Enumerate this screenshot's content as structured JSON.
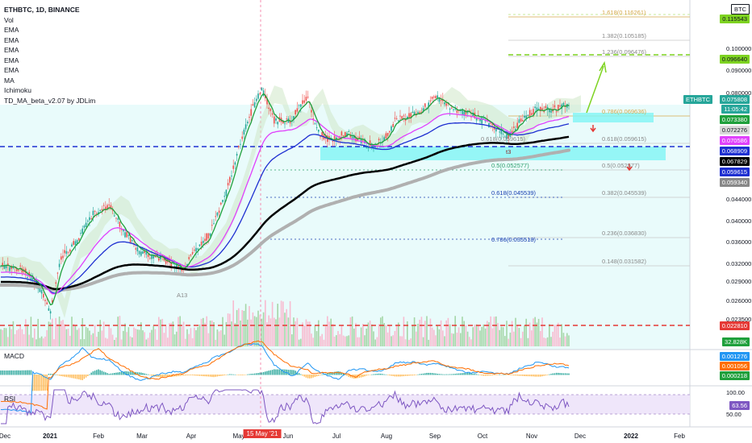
{
  "header": {
    "symbol_line": "ETHBTC, 1D, BINANCE",
    "indicators": [
      "Vol",
      "EMA",
      "EMA",
      "EMA",
      "EMA",
      "EMA",
      "MA",
      "Ichimoku",
      "TD_MA_beta_v2.07 by JDLim"
    ]
  },
  "price_scale": {
    "currency": "BTC",
    "ticks": [
      "0.100000",
      "0.090000",
      "0.080000",
      "0.044000",
      "0.040000",
      "0.036000",
      "0.032000",
      "0.029000",
      "0.026000",
      "0.023500"
    ]
  },
  "tags": {
    "symbol": "ETHBTC",
    "price": "0.075808",
    "countdown": "11:05:42",
    "t_top": "0.115543",
    "t_target": "0.096640",
    "ema1": "0.073380",
    "ema2": "0.072276",
    "ema3": "0.070586",
    "ema4": "0.068909",
    "ema5": "0.067829",
    "ma": "0.059615",
    "ichimoku": "0.059340",
    "support": "0.022810",
    "volume": "32.828K",
    "macd1": "0.001276",
    "macd2": "0.001056",
    "macd3": "0.000218",
    "rsi_top": "100.00",
    "rsi": "63.56",
    "rsi_low": "50.00"
  },
  "fib_levels": [
    {
      "label": "1.618(0.116261)",
      "color": "#d4a84b"
    },
    {
      "label": "1.382(0.105185)",
      "color": "#8a8a8a"
    },
    {
      "label": "1.236(0.096476)",
      "color": "#8a8a8a"
    },
    {
      "label": "0.786(0.069636)",
      "color": "#d4a84b"
    },
    {
      "label": "0.618(0.059615)",
      "color": "#8a8a8a"
    },
    {
      "label": "0.5(0.052577)",
      "color": "#8a8a8a"
    },
    {
      "label": "0.382(0.045539)",
      "color": "#8a8a8a"
    },
    {
      "label": "0.236(0.036830)",
      "color": "#8a8a8a"
    },
    {
      "label": "0.148(0.031582)",
      "color": "#8a8a8a"
    }
  ],
  "left_fibs": [
    {
      "label": "0.5(0.052577)",
      "color": "#2e9e6b"
    },
    {
      "label": "0.618(0.045539)",
      "color": "#1a3fb0"
    },
    {
      "label": "0.786(0.035518)",
      "color": "#1a3fb0"
    }
  ],
  "annotations": {
    "left_fib_prefix": "0.618(0.059615)",
    "t3": "t3",
    "a13": "A13"
  },
  "panes": {
    "macd_label": "MACD",
    "rsi_label": "RSI"
  },
  "x_axis": {
    "dates": [
      "Dec",
      "2021",
      "Feb",
      "Mar",
      "Apr",
      "May",
      "Jun",
      "Jul",
      "Aug",
      "Sep",
      "Oct",
      "Nov",
      "Dec",
      "2022",
      "Feb"
    ],
    "crosshair_date": "15 May '21"
  },
  "colors": {
    "up": "#26a69a",
    "green_line": "#1fa03c",
    "pink": "#e040fb",
    "blue": "#1e2fd1",
    "black": "#000000",
    "gray": "#b0b0b0",
    "cyan_box": "#7ff5f5",
    "target": "#7ed321",
    "support": "#e53935"
  },
  "chart_data": {
    "type": "line",
    "title": "ETHBTC, 1D, BINANCE",
    "x_range": [
      "Dec 2020",
      "Feb 2022"
    ],
    "y_scale": "log",
    "ylabel": "BTC",
    "series_approx_close": [
      {
        "date": "Dec 2020",
        "value": 0.031
      },
      {
        "date": "Jan 2021",
        "value": 0.026
      },
      {
        "date": "Feb 2021",
        "value": 0.036
      },
      {
        "date": "Mar 2021",
        "value": 0.031
      },
      {
        "date": "Apr 2021",
        "value": 0.036
      },
      {
        "date": "May 2021",
        "value": 0.08
      },
      {
        "date": "Jun 2021",
        "value": 0.066
      },
      {
        "date": "Jul 2021",
        "value": 0.062
      },
      {
        "date": "Aug 2021",
        "value": 0.068
      },
      {
        "date": "Sep 2021",
        "value": 0.077
      },
      {
        "date": "Oct 2021",
        "value": 0.066
      },
      {
        "date": "Nov 2021",
        "value": 0.072
      },
      {
        "date": "Nov 2021 end",
        "value": 0.075808
      }
    ]
  }
}
